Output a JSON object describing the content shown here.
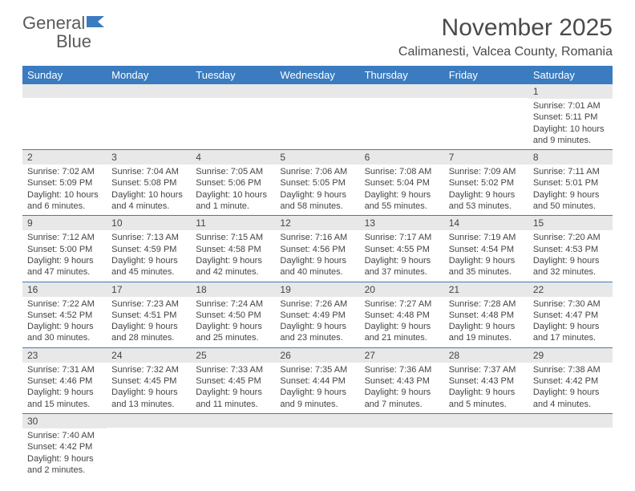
{
  "logo": {
    "word1": "General",
    "word2": "Blue"
  },
  "title": "November 2025",
  "location": "Calimanesti, Valcea County, Romania",
  "colors": {
    "header_bg": "#3b7bbf",
    "header_text": "#ffffff",
    "daynum_bg": "#e8e8e8",
    "row_border": "#3b7bbf",
    "text": "#444444",
    "background": "#ffffff"
  },
  "typography": {
    "title_fontsize": 30,
    "location_fontsize": 16,
    "dayheader_fontsize": 13,
    "daynum_fontsize": 12,
    "content_fontsize": 11
  },
  "day_headers": [
    "Sunday",
    "Monday",
    "Tuesday",
    "Wednesday",
    "Thursday",
    "Friday",
    "Saturday"
  ],
  "weeks": [
    [
      {
        "num": "",
        "lines": []
      },
      {
        "num": "",
        "lines": []
      },
      {
        "num": "",
        "lines": []
      },
      {
        "num": "",
        "lines": []
      },
      {
        "num": "",
        "lines": []
      },
      {
        "num": "",
        "lines": []
      },
      {
        "num": "1",
        "lines": [
          "Sunrise: 7:01 AM",
          "Sunset: 5:11 PM",
          "Daylight: 10 hours and 9 minutes."
        ]
      }
    ],
    [
      {
        "num": "2",
        "lines": [
          "Sunrise: 7:02 AM",
          "Sunset: 5:09 PM",
          "Daylight: 10 hours and 6 minutes."
        ]
      },
      {
        "num": "3",
        "lines": [
          "Sunrise: 7:04 AM",
          "Sunset: 5:08 PM",
          "Daylight: 10 hours and 4 minutes."
        ]
      },
      {
        "num": "4",
        "lines": [
          "Sunrise: 7:05 AM",
          "Sunset: 5:06 PM",
          "Daylight: 10 hours and 1 minute."
        ]
      },
      {
        "num": "5",
        "lines": [
          "Sunrise: 7:06 AM",
          "Sunset: 5:05 PM",
          "Daylight: 9 hours and 58 minutes."
        ]
      },
      {
        "num": "6",
        "lines": [
          "Sunrise: 7:08 AM",
          "Sunset: 5:04 PM",
          "Daylight: 9 hours and 55 minutes."
        ]
      },
      {
        "num": "7",
        "lines": [
          "Sunrise: 7:09 AM",
          "Sunset: 5:02 PM",
          "Daylight: 9 hours and 53 minutes."
        ]
      },
      {
        "num": "8",
        "lines": [
          "Sunrise: 7:11 AM",
          "Sunset: 5:01 PM",
          "Daylight: 9 hours and 50 minutes."
        ]
      }
    ],
    [
      {
        "num": "9",
        "lines": [
          "Sunrise: 7:12 AM",
          "Sunset: 5:00 PM",
          "Daylight: 9 hours and 47 minutes."
        ]
      },
      {
        "num": "10",
        "lines": [
          "Sunrise: 7:13 AM",
          "Sunset: 4:59 PM",
          "Daylight: 9 hours and 45 minutes."
        ]
      },
      {
        "num": "11",
        "lines": [
          "Sunrise: 7:15 AM",
          "Sunset: 4:58 PM",
          "Daylight: 9 hours and 42 minutes."
        ]
      },
      {
        "num": "12",
        "lines": [
          "Sunrise: 7:16 AM",
          "Sunset: 4:56 PM",
          "Daylight: 9 hours and 40 minutes."
        ]
      },
      {
        "num": "13",
        "lines": [
          "Sunrise: 7:17 AM",
          "Sunset: 4:55 PM",
          "Daylight: 9 hours and 37 minutes."
        ]
      },
      {
        "num": "14",
        "lines": [
          "Sunrise: 7:19 AM",
          "Sunset: 4:54 PM",
          "Daylight: 9 hours and 35 minutes."
        ]
      },
      {
        "num": "15",
        "lines": [
          "Sunrise: 7:20 AM",
          "Sunset: 4:53 PM",
          "Daylight: 9 hours and 32 minutes."
        ]
      }
    ],
    [
      {
        "num": "16",
        "lines": [
          "Sunrise: 7:22 AM",
          "Sunset: 4:52 PM",
          "Daylight: 9 hours and 30 minutes."
        ]
      },
      {
        "num": "17",
        "lines": [
          "Sunrise: 7:23 AM",
          "Sunset: 4:51 PM",
          "Daylight: 9 hours and 28 minutes."
        ]
      },
      {
        "num": "18",
        "lines": [
          "Sunrise: 7:24 AM",
          "Sunset: 4:50 PM",
          "Daylight: 9 hours and 25 minutes."
        ]
      },
      {
        "num": "19",
        "lines": [
          "Sunrise: 7:26 AM",
          "Sunset: 4:49 PM",
          "Daylight: 9 hours and 23 minutes."
        ]
      },
      {
        "num": "20",
        "lines": [
          "Sunrise: 7:27 AM",
          "Sunset: 4:48 PM",
          "Daylight: 9 hours and 21 minutes."
        ]
      },
      {
        "num": "21",
        "lines": [
          "Sunrise: 7:28 AM",
          "Sunset: 4:48 PM",
          "Daylight: 9 hours and 19 minutes."
        ]
      },
      {
        "num": "22",
        "lines": [
          "Sunrise: 7:30 AM",
          "Sunset: 4:47 PM",
          "Daylight: 9 hours and 17 minutes."
        ]
      }
    ],
    [
      {
        "num": "23",
        "lines": [
          "Sunrise: 7:31 AM",
          "Sunset: 4:46 PM",
          "Daylight: 9 hours and 15 minutes."
        ]
      },
      {
        "num": "24",
        "lines": [
          "Sunrise: 7:32 AM",
          "Sunset: 4:45 PM",
          "Daylight: 9 hours and 13 minutes."
        ]
      },
      {
        "num": "25",
        "lines": [
          "Sunrise: 7:33 AM",
          "Sunset: 4:45 PM",
          "Daylight: 9 hours and 11 minutes."
        ]
      },
      {
        "num": "26",
        "lines": [
          "Sunrise: 7:35 AM",
          "Sunset: 4:44 PM",
          "Daylight: 9 hours and 9 minutes."
        ]
      },
      {
        "num": "27",
        "lines": [
          "Sunrise: 7:36 AM",
          "Sunset: 4:43 PM",
          "Daylight: 9 hours and 7 minutes."
        ]
      },
      {
        "num": "28",
        "lines": [
          "Sunrise: 7:37 AM",
          "Sunset: 4:43 PM",
          "Daylight: 9 hours and 5 minutes."
        ]
      },
      {
        "num": "29",
        "lines": [
          "Sunrise: 7:38 AM",
          "Sunset: 4:42 PM",
          "Daylight: 9 hours and 4 minutes."
        ]
      }
    ],
    [
      {
        "num": "30",
        "lines": [
          "Sunrise: 7:40 AM",
          "Sunset: 4:42 PM",
          "Daylight: 9 hours and 2 minutes."
        ]
      },
      {
        "num": "",
        "lines": []
      },
      {
        "num": "",
        "lines": []
      },
      {
        "num": "",
        "lines": []
      },
      {
        "num": "",
        "lines": []
      },
      {
        "num": "",
        "lines": []
      },
      {
        "num": "",
        "lines": []
      }
    ]
  ]
}
